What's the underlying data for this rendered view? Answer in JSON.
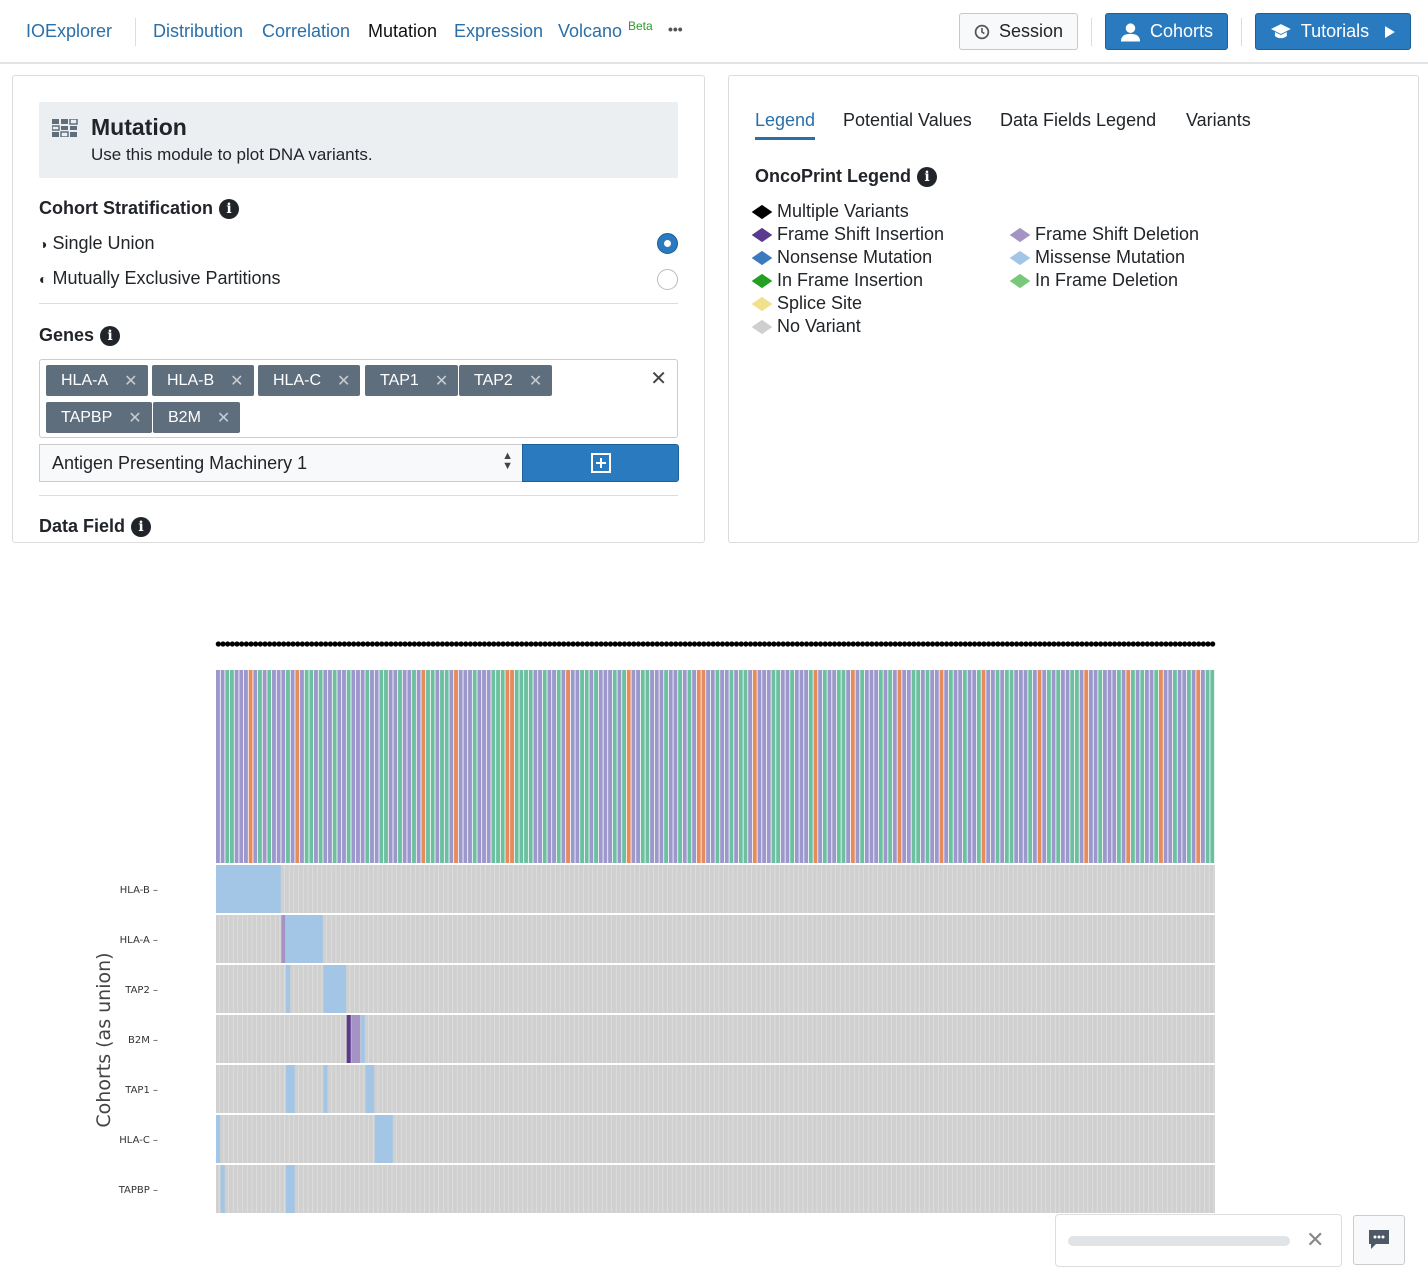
{
  "header": {
    "brand": "IOExplorer",
    "nav": [
      "Distribution",
      "Correlation",
      "Mutation",
      "Expression",
      "Volcano"
    ],
    "beta": "Beta",
    "more": "•••",
    "session": "Session",
    "cohorts": "Cohorts",
    "tutorials": "Tutorials"
  },
  "left": {
    "title": "Mutation",
    "subtitle": "Use this module to plot DNA variants.",
    "strat_label": "Cohort Stratification",
    "options": [
      "Single Union",
      "Mutually Exclusive Partitions"
    ],
    "selected_option": 0,
    "genes_label": "Genes",
    "genes": [
      "HLA-A",
      "HLA-B",
      "HLA-C",
      "TAP1",
      "TAP2",
      "TAPBP",
      "B2M"
    ],
    "gene_set": "Antigen Presenting Machinery 1",
    "data_field_label": "Data Field"
  },
  "right": {
    "tabs": [
      "Legend",
      "Potential Values",
      "Data Fields Legend",
      "Variants"
    ],
    "active_tab": 0,
    "legend_title": "OncoPrint Legend",
    "legend": [
      {
        "label": "Multiple Variants",
        "color": "#000000"
      },
      {
        "label": "Frame Shift Insertion",
        "color": "#5b3a8e"
      },
      {
        "label": "Nonsense Mutation",
        "color": "#3b7bbd"
      },
      {
        "label": "In Frame Insertion",
        "color": "#22a022"
      },
      {
        "label": "Splice Site",
        "color": "#f1e08c"
      },
      {
        "label": "No Variant",
        "color": "#cfcfcf"
      },
      {
        "label": "Frame Shift Deletion",
        "color": "#a693c6"
      },
      {
        "label": "Missense Mutation",
        "color": "#a3c6e6"
      },
      {
        "label": "In Frame Deletion",
        "color": "#79c879"
      }
    ]
  },
  "chart_data": {
    "type": "heatmap",
    "ylabel": "Cohorts (as union)",
    "n_samples": 214,
    "cohort_colors": {
      "P": "#9c98cc",
      "G": "#6cc0a0",
      "O": "#e58b5e"
    },
    "cohort_pattern": "PPGGPPPOPGPGPPPGPOPGGPGPPGPPGPPPGPPGGPPGPPGPOGGPGGPOPPPGPPPGGGOOGGGGPPGPPGPOPPGGPGPPPGPGOPPGGPPPGPPGPGPOOPPGPPGPGGPOPPPGGPPGPPPGOPGPPGGPOPGPPPGPGPOPPGGPGPPOPGPPGPPGOPPGPGGPPPGPOPGPGPPGGPOPPGPPPGPOGPGPPGOPPGPPGPOPGG",
    "genes": [
      {
        "gene": "HLA-B",
        "mutations": [
          {
            "from": 0,
            "to": 13,
            "type": "Missense Mutation"
          }
        ]
      },
      {
        "gene": "HLA-A",
        "mutations": [
          {
            "from": 14,
            "to": 14,
            "type": "Frame Shift Deletion"
          },
          {
            "from": 15,
            "to": 22,
            "type": "Missense Mutation"
          }
        ]
      },
      {
        "gene": "TAP2",
        "mutations": [
          {
            "from": 15,
            "to": 15,
            "type": "Missense Mutation"
          },
          {
            "from": 23,
            "to": 27,
            "type": "Missense Mutation"
          }
        ]
      },
      {
        "gene": "B2M",
        "mutations": [
          {
            "from": 28,
            "to": 28,
            "type": "Frame Shift Insertion"
          },
          {
            "from": 29,
            "to": 30,
            "type": "Frame Shift Deletion"
          },
          {
            "from": 31,
            "to": 31,
            "type": "Missense Mutation"
          }
        ]
      },
      {
        "gene": "TAP1",
        "mutations": [
          {
            "from": 15,
            "to": 16,
            "type": "Missense Mutation"
          },
          {
            "from": 23,
            "to": 23,
            "type": "Missense Mutation"
          },
          {
            "from": 32,
            "to": 33,
            "type": "Missense Mutation"
          }
        ]
      },
      {
        "gene": "HLA-C",
        "mutations": [
          {
            "from": 0,
            "to": 0,
            "type": "Missense Mutation"
          },
          {
            "from": 34,
            "to": 37,
            "type": "Missense Mutation"
          }
        ]
      },
      {
        "gene": "TAPBP",
        "mutations": [
          {
            "from": 1,
            "to": 1,
            "type": "Missense Mutation"
          },
          {
            "from": 15,
            "to": 16,
            "type": "Missense Mutation"
          }
        ]
      }
    ]
  }
}
